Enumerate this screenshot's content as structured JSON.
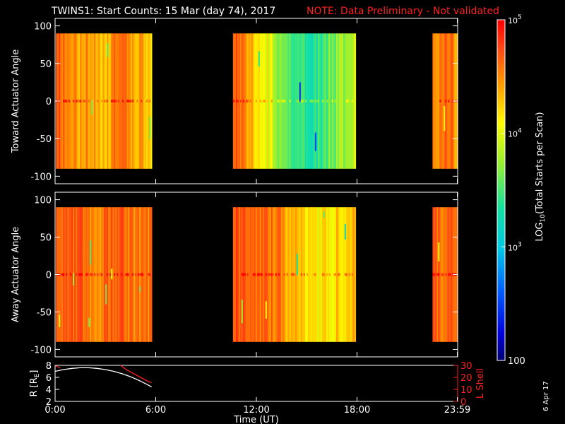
{
  "title": {
    "main": "TWINS1: Start Counts: 15 Mar (day  74), 2017",
    "note": "NOTE: Data Preliminary - Not validated"
  },
  "print_date": "6 Apr 17",
  "chart_data": [
    {
      "type": "heatmap",
      "panel": "toward",
      "ylabel": "Toward Actuator Angle",
      "ylim": [
        -110,
        110
      ],
      "yticks": [
        100,
        50,
        0,
        -50,
        -100
      ],
      "y_data_range": [
        -90,
        90
      ],
      "xlim_hours": [
        0,
        24
      ],
      "data_intervals_hours": [
        [
          0.05,
          5.75
        ],
        [
          10.6,
          17.9
        ],
        [
          22.5,
          23.98
        ]
      ],
      "color_profile_log10": [
        {
          "x": [
            0.05,
            5.75
          ],
          "log_counts": [
            4.7,
            4.6,
            4.4,
            4.5,
            4.3,
            4.6,
            4.5,
            4.4,
            4.3
          ]
        },
        {
          "x": [
            10.6,
            17.9
          ],
          "log_counts": [
            4.7,
            4.5,
            4.2,
            4.0,
            3.7,
            3.5,
            3.3,
            3.4,
            3.6,
            3.8,
            4.0
          ]
        },
        {
          "x": [
            22.5,
            23.98
          ],
          "log_counts": [
            4.6,
            4.5,
            4.7,
            4.4
          ]
        }
      ]
    },
    {
      "type": "heatmap",
      "panel": "away",
      "ylabel": "Away Actuator Angle",
      "ylim": [
        -110,
        110
      ],
      "yticks": [
        100,
        50,
        0,
        -50,
        -100
      ],
      "y_data_range": [
        -90,
        90
      ],
      "xlim_hours": [
        0,
        24
      ],
      "data_intervals_hours": [
        [
          0.05,
          5.75
        ],
        [
          10.6,
          17.9
        ],
        [
          22.5,
          23.98
        ]
      ],
      "color_profile_log10": [
        {
          "x": [
            0.05,
            5.75
          ],
          "log_counts": [
            4.7,
            4.6,
            4.7,
            4.5,
            4.6,
            4.7,
            4.6,
            4.5,
            4.6
          ]
        },
        {
          "x": [
            10.6,
            17.9
          ],
          "log_counts": [
            4.7,
            4.7,
            4.6,
            4.6,
            4.5,
            4.3,
            4.2,
            4.1,
            4.2,
            4.3,
            4.4
          ]
        },
        {
          "x": [
            22.5,
            23.98
          ],
          "log_counts": [
            4.7,
            4.6,
            4.7,
            4.6
          ]
        }
      ]
    },
    {
      "type": "line",
      "panel": "orbit",
      "ylabel": "R [R",
      "ylabel_sub": "E",
      "ylabel_suffix": "]",
      "ylim": [
        2,
        8
      ],
      "yticks": [
        8,
        6,
        4,
        2
      ],
      "y2label": "L Shell",
      "y2lim": [
        0,
        30
      ],
      "y2ticks": [
        30,
        20,
        10,
        0
      ],
      "xlabel": "Time (UT)",
      "xticks": [
        {
          "h": 0,
          "label": "0:00"
        },
        {
          "h": 6,
          "label": "6:00"
        },
        {
          "h": 12,
          "label": "12:00"
        },
        {
          "h": 18,
          "label": "18:00"
        },
        {
          "h": 23.98,
          "label": "23:59"
        }
      ],
      "series": [
        {
          "axis": "left",
          "color": "#ffffff",
          "x": [
            0.0,
            0.5,
            1.0,
            1.5,
            2.0,
            2.5,
            3.0,
            3.5,
            4.0,
            4.5,
            5.0,
            5.5,
            5.75
          ],
          "y": [
            7.0,
            7.3,
            7.5,
            7.6,
            7.6,
            7.5,
            7.3,
            7.0,
            6.6,
            6.1,
            5.5,
            4.8,
            4.4
          ]
        },
        {
          "axis": "right",
          "color": "#ff2020",
          "x": [
            3.9,
            4.3,
            4.7,
            5.1,
            5.5,
            5.75
          ],
          "y": [
            30,
            26,
            23,
            20,
            17,
            15.5
          ]
        },
        {
          "axis": "right",
          "color": "#ff2020",
          "x": [
            0.0,
            0.3
          ],
          "y": [
            30,
            28
          ]
        }
      ]
    },
    {
      "type": "colorbar",
      "label": "LOG",
      "label_sub": "10",
      "label_suffix": "(Total Starts per Scan)",
      "range_log10": [
        2,
        5
      ],
      "tick_base": "10",
      "ticks": [
        {
          "v": 5,
          "exp": "5"
        },
        {
          "v": 4,
          "exp": "4"
        },
        {
          "v": 3,
          "exp": "3"
        },
        {
          "v": 2,
          "label": "100"
        }
      ]
    }
  ]
}
